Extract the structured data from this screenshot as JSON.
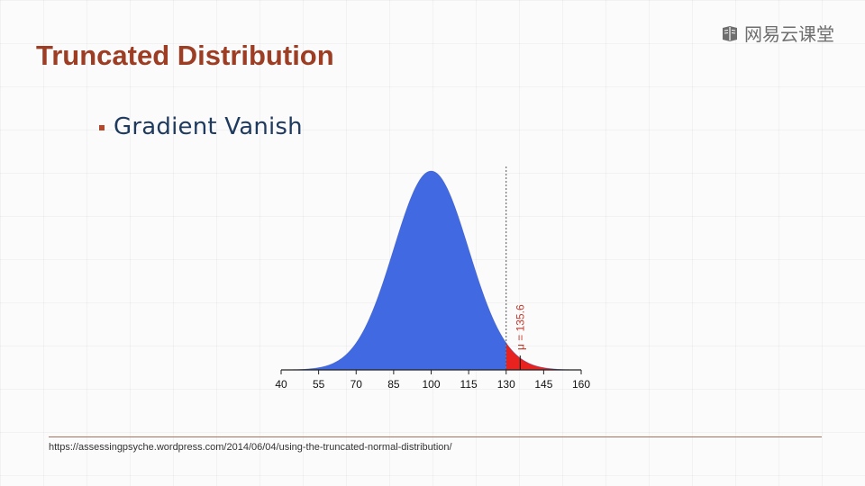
{
  "slide": {
    "title": "Truncated Distribution",
    "bullet": "Gradient Vanish",
    "source": "https://assessingpsyche.wordpress.com/2014/06/04/using-the-truncated-normal-distribution/"
  },
  "brand": {
    "text": "网易云课堂",
    "icon": "book-logo-icon"
  },
  "colors": {
    "title": "#9c3d24",
    "bullet_text": "#1f3a5f",
    "bullet_marker": "#b5472a",
    "main_fill": "#4169e1",
    "tail_fill": "#e8231f",
    "annotation": "#c0392b"
  },
  "chart_data": {
    "type": "area",
    "distribution": "normal",
    "mean": 100,
    "sd": 15,
    "truncation_point": 130,
    "truncated_mean": 135.6,
    "annotation": "μ = 135.6",
    "x_ticks": [
      40,
      55,
      70,
      85,
      100,
      115,
      130,
      145,
      160
    ],
    "xlim": [
      40,
      160
    ],
    "grid": false,
    "regions": [
      {
        "range": [
          40,
          130
        ],
        "color": "#4169e1"
      },
      {
        "range": [
          130,
          160
        ],
        "color": "#e8231f"
      }
    ]
  }
}
